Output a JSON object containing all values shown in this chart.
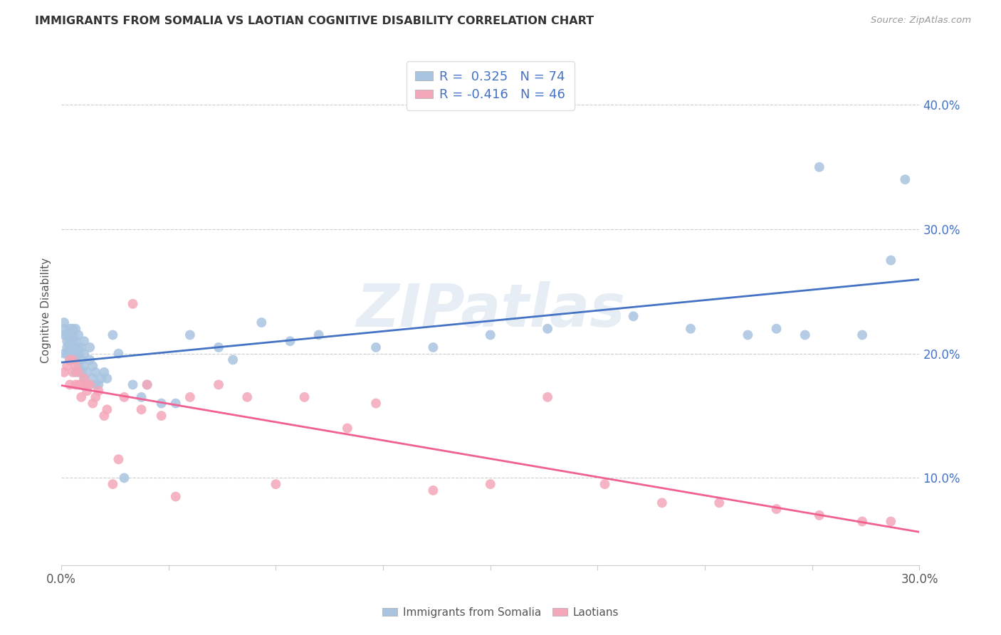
{
  "title": "IMMIGRANTS FROM SOMALIA VS LAOTIAN COGNITIVE DISABILITY CORRELATION CHART",
  "source": "Source: ZipAtlas.com",
  "ylabel": "Cognitive Disability",
  "legend_somalia_label": "Immigrants from Somalia",
  "legend_laotian_label": "Laotians",
  "legend_somalia_r": "R =  0.325",
  "legend_somalia_n": "N = 74",
  "legend_laotian_r": "R = -0.416",
  "legend_laotian_n": "N = 46",
  "somalia_color": "#a8c4e0",
  "laotian_color": "#f4a7b9",
  "somalia_line_color": "#4472c4",
  "laotian_line_color": "#f06090",
  "background_color": "#ffffff",
  "grid_color": "#cccccc",
  "watermark": "ZIPatlas",
  "somalia_points_x": [
    0.001,
    0.001,
    0.001,
    0.001,
    0.002,
    0.002,
    0.002,
    0.002,
    0.003,
    0.003,
    0.003,
    0.003,
    0.003,
    0.004,
    0.004,
    0.004,
    0.004,
    0.004,
    0.005,
    0.005,
    0.005,
    0.005,
    0.005,
    0.005,
    0.006,
    0.006,
    0.006,
    0.006,
    0.007,
    0.007,
    0.007,
    0.008,
    0.008,
    0.008,
    0.008,
    0.009,
    0.009,
    0.01,
    0.01,
    0.011,
    0.011,
    0.012,
    0.012,
    0.013,
    0.014,
    0.015,
    0.016,
    0.018,
    0.02,
    0.022,
    0.025,
    0.028,
    0.03,
    0.035,
    0.04,
    0.045,
    0.055,
    0.06,
    0.07,
    0.08,
    0.09,
    0.11,
    0.13,
    0.15,
    0.17,
    0.2,
    0.22,
    0.24,
    0.26,
    0.28,
    0.29,
    0.295,
    0.25,
    0.265
  ],
  "somalia_points_y": [
    0.215,
    0.22,
    0.225,
    0.2,
    0.21,
    0.205,
    0.2,
    0.215,
    0.195,
    0.21,
    0.22,
    0.205,
    0.215,
    0.195,
    0.2,
    0.21,
    0.22,
    0.215,
    0.185,
    0.195,
    0.2,
    0.205,
    0.21,
    0.22,
    0.19,
    0.2,
    0.205,
    0.215,
    0.185,
    0.195,
    0.205,
    0.18,
    0.19,
    0.2,
    0.21,
    0.175,
    0.185,
    0.195,
    0.205,
    0.18,
    0.19,
    0.175,
    0.185,
    0.175,
    0.18,
    0.185,
    0.18,
    0.215,
    0.2,
    0.1,
    0.175,
    0.165,
    0.175,
    0.16,
    0.16,
    0.215,
    0.205,
    0.195,
    0.225,
    0.21,
    0.215,
    0.205,
    0.205,
    0.215,
    0.22,
    0.23,
    0.22,
    0.215,
    0.215,
    0.215,
    0.275,
    0.34,
    0.22,
    0.35
  ],
  "laotian_points_x": [
    0.001,
    0.002,
    0.003,
    0.003,
    0.004,
    0.004,
    0.005,
    0.005,
    0.006,
    0.006,
    0.007,
    0.007,
    0.008,
    0.009,
    0.009,
    0.01,
    0.011,
    0.012,
    0.013,
    0.015,
    0.016,
    0.018,
    0.02,
    0.022,
    0.025,
    0.028,
    0.03,
    0.035,
    0.04,
    0.045,
    0.055,
    0.065,
    0.075,
    0.085,
    0.1,
    0.11,
    0.13,
    0.15,
    0.17,
    0.19,
    0.21,
    0.23,
    0.25,
    0.265,
    0.28,
    0.29
  ],
  "laotian_points_y": [
    0.185,
    0.19,
    0.175,
    0.195,
    0.185,
    0.195,
    0.175,
    0.19,
    0.175,
    0.185,
    0.165,
    0.175,
    0.18,
    0.17,
    0.175,
    0.175,
    0.16,
    0.165,
    0.17,
    0.15,
    0.155,
    0.095,
    0.115,
    0.165,
    0.24,
    0.155,
    0.175,
    0.15,
    0.085,
    0.165,
    0.175,
    0.165,
    0.095,
    0.165,
    0.14,
    0.16,
    0.09,
    0.095,
    0.165,
    0.095,
    0.08,
    0.08,
    0.075,
    0.07,
    0.065,
    0.065
  ],
  "xlim": [
    0.0,
    0.3
  ],
  "ylim": [
    0.03,
    0.44
  ],
  "ytick_vals": [
    0.1,
    0.2,
    0.3,
    0.4
  ]
}
